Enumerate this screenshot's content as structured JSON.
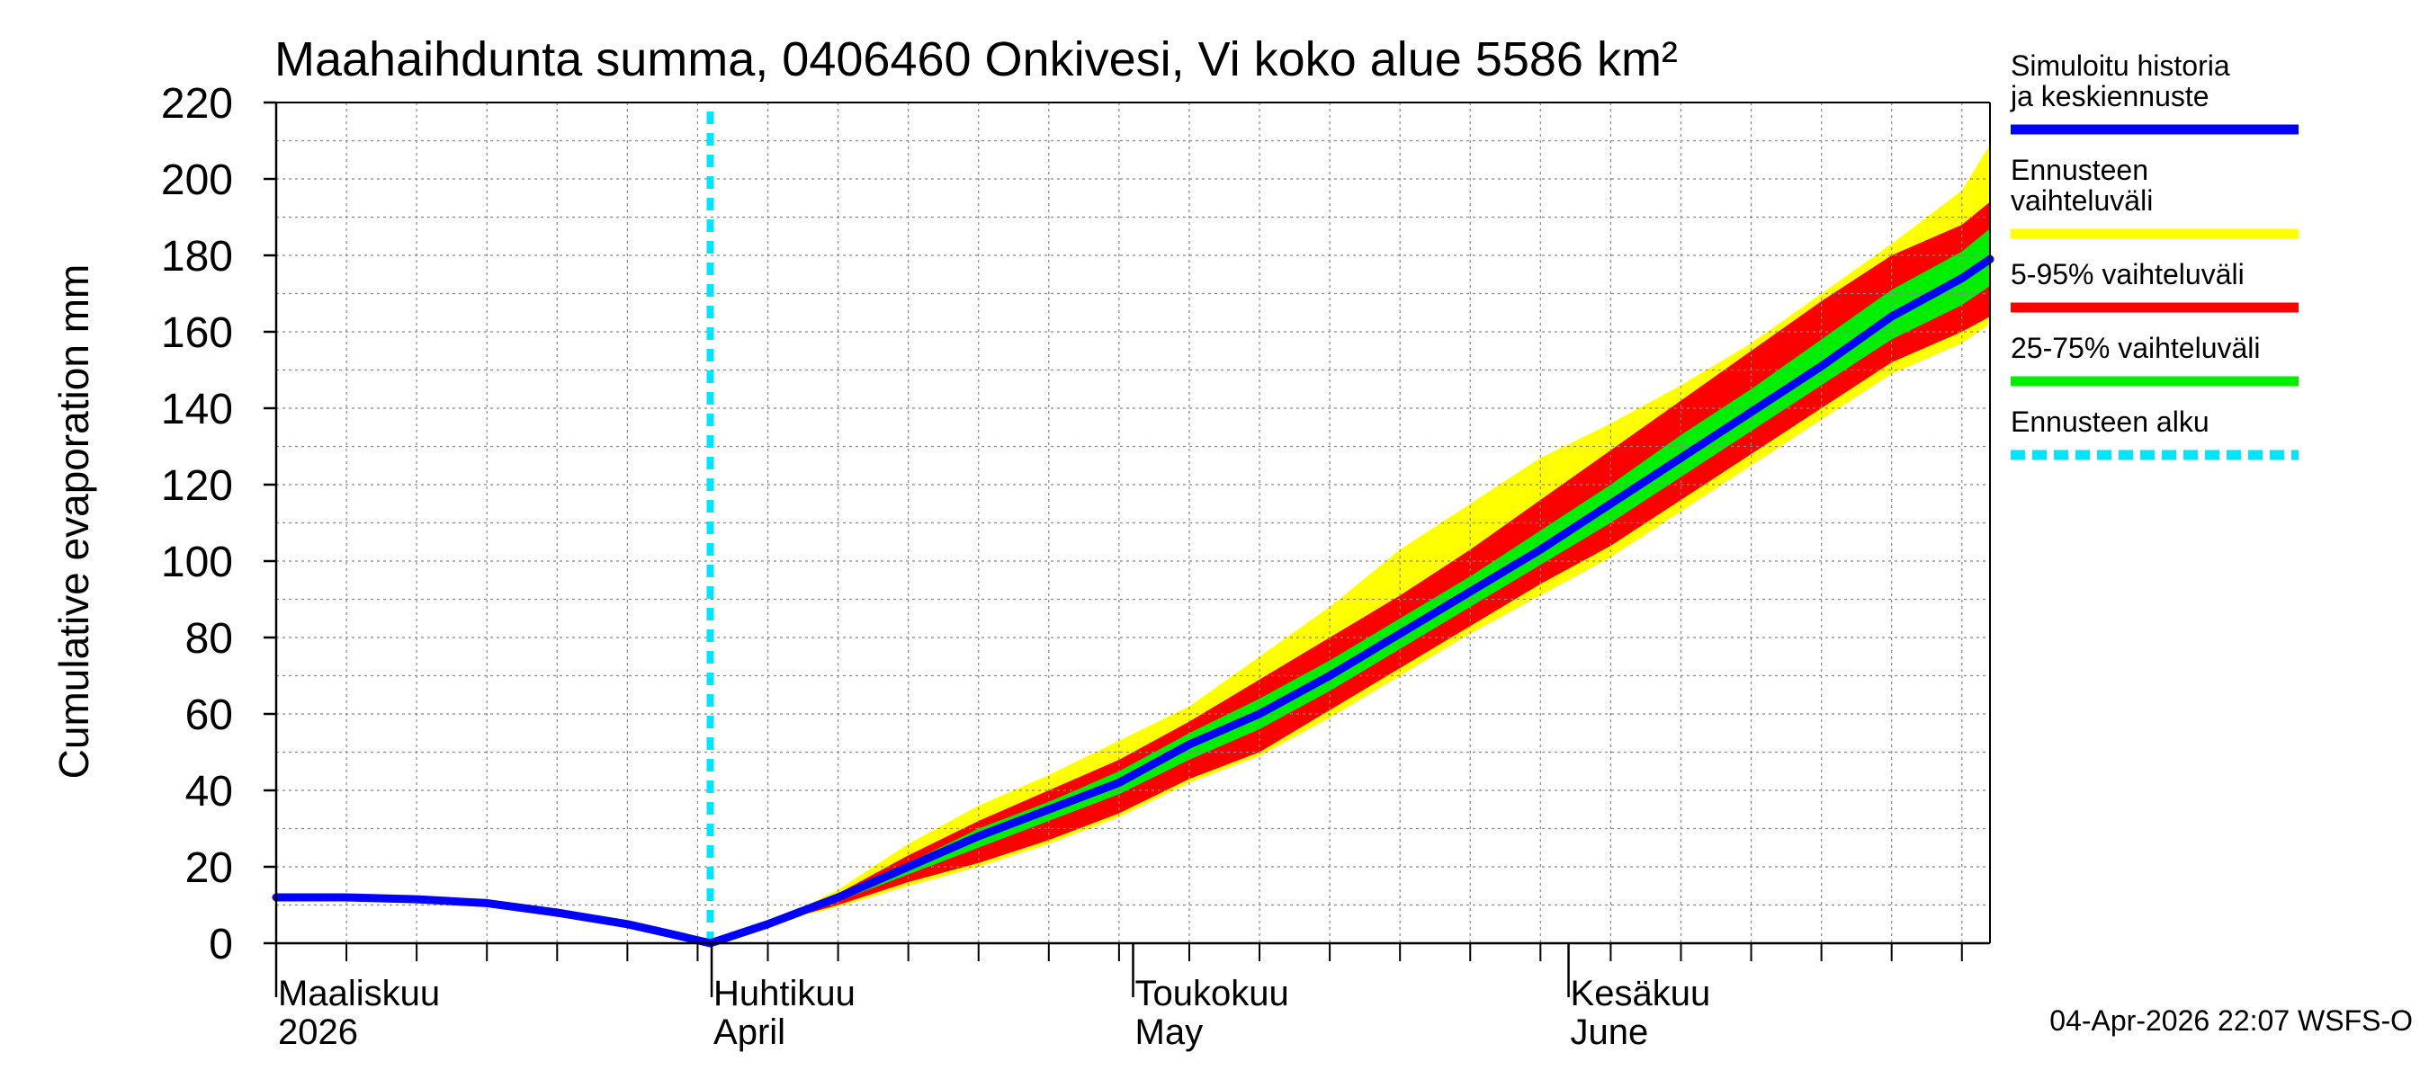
{
  "chart_data": {
    "type": "area",
    "title": "Maahaihdunta summa, 0406460 Onkivesi, Vi koko alue 5586 km²",
    "ylabel": "Cumulative evaporation   mm",
    "ylim": [
      0,
      220
    ],
    "yticks": [
      0,
      20,
      40,
      60,
      80,
      100,
      120,
      140,
      160,
      180,
      200,
      220
    ],
    "xlim": [
      0,
      122
    ],
    "month_labels": [
      {
        "day": 0,
        "fi": "Maaliskuu",
        "en": "2026"
      },
      {
        "day": 31,
        "fi": "Huhtikuu",
        "en": "April"
      },
      {
        "day": 61,
        "fi": "Toukokuu",
        "en": "May"
      },
      {
        "day": 92,
        "fi": "Kesäkuu",
        "en": "June"
      }
    ],
    "forecast_start_day": 30.9,
    "colors": {
      "median": "#0000ff",
      "range": "#ffff00",
      "p5_95": "#ff0000",
      "p25_75": "#00ee00",
      "forecast_start": "#00e5ff"
    },
    "legend": [
      {
        "key": "median",
        "label": "Simuloitu historia ja keskiennuste",
        "style": "solid"
      },
      {
        "key": "range",
        "label": "Ennusteen vaihteluväli",
        "style": "solid"
      },
      {
        "key": "p5_95",
        "label": "5-95% vaihteluväli",
        "style": "solid"
      },
      {
        "key": "p25_75",
        "label": "25-75% vaihteluväli",
        "style": "solid"
      },
      {
        "key": "forecast_start",
        "label": "Ennusteen alku",
        "style": "dashed"
      }
    ],
    "history": {
      "x": [
        0,
        5,
        10,
        15,
        20,
        25,
        28,
        30.9
      ],
      "y": [
        12,
        12,
        11.5,
        10.5,
        8,
        5,
        2.5,
        0
      ]
    },
    "forecast": {
      "x": [
        30.9,
        35,
        40,
        45,
        50,
        55,
        60,
        65,
        70,
        75,
        80,
        85,
        90,
        95,
        100,
        105,
        110,
        115,
        120,
        122
      ],
      "median": [
        0,
        5,
        12,
        20,
        28,
        35,
        42,
        52,
        60,
        70,
        81,
        92,
        103,
        115,
        127,
        139,
        151,
        164,
        174,
        179
      ],
      "p25": [
        0,
        5,
        11,
        18,
        25,
        32,
        39,
        48,
        56,
        66,
        77,
        88,
        99,
        110,
        122,
        134,
        146,
        158,
        167,
        172
      ],
      "p75": [
        0,
        5,
        12.5,
        21,
        30,
        37,
        45,
        55,
        64,
        74,
        85,
        96,
        108,
        120,
        133,
        145,
        158,
        171,
        181,
        187
      ],
      "p5": [
        0,
        5,
        10,
        16,
        21,
        27,
        34,
        43,
        50,
        61,
        72,
        83,
        94,
        104,
        116,
        128,
        140,
        152,
        160,
        164
      ],
      "p95": [
        0,
        5,
        13,
        23,
        32,
        40,
        48,
        58,
        69,
        80,
        91,
        103,
        116,
        129,
        142,
        155,
        168,
        180,
        188,
        194
      ],
      "min": [
        0,
        5,
        9.5,
        15,
        20,
        26,
        33,
        42,
        49,
        59,
        70,
        81,
        91,
        101,
        113,
        125,
        137,
        149,
        157,
        162
      ],
      "max": [
        0,
        5,
        14,
        26,
        36,
        44,
        53,
        62,
        75,
        88,
        103,
        115,
        127,
        136,
        146,
        157,
        170,
        183,
        197,
        209
      ]
    },
    "footer": "04-Apr-2026 22:07 WSFS-O"
  }
}
